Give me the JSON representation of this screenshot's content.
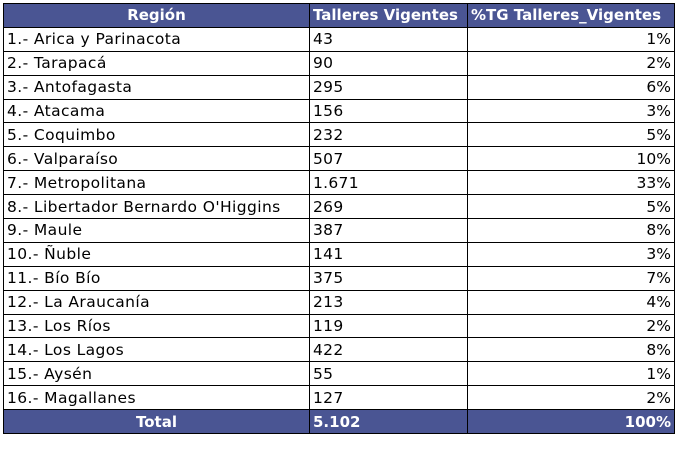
{
  "table": {
    "headers": {
      "region": "Región",
      "talleres": "Talleres Vigentes",
      "pct": "%TG Talleres_Vigentes"
    },
    "rows": [
      {
        "region": "1.- Arica y Parinacota",
        "talleres": " 43",
        "pct": "1%"
      },
      {
        "region": "2.- Tarapacá",
        "talleres": " 90",
        "pct": "2%"
      },
      {
        "region": "3.- Antofagasta",
        "talleres": "295",
        "pct": "6%"
      },
      {
        "region": "4.- Atacama",
        "talleres": "156",
        "pct": "3%"
      },
      {
        "region": "5.- Coquimbo",
        "talleres": "232",
        "pct": "5%"
      },
      {
        "region": "6.- Valparaíso",
        "talleres": "507",
        "pct": "10%"
      },
      {
        "region": "7.- Metropolitana",
        "talleres": "1.671",
        "pct": "33%"
      },
      {
        "region": "8.- Libertador Bernardo O'Higgins",
        "talleres": "269",
        "pct": "5%"
      },
      {
        "region": "9.- Maule",
        "talleres": "387",
        "pct": "8%"
      },
      {
        "region": "10.- Ñuble",
        "talleres": "141",
        "pct": "3%"
      },
      {
        "region": "11.- Bío Bío",
        "talleres": "375",
        "pct": "7%"
      },
      {
        "region": "12.- La Araucanía",
        "talleres": "213",
        "pct": "4%"
      },
      {
        "region": "13.- Los Ríos",
        "talleres": "119",
        "pct": "2%"
      },
      {
        "region": "14.- Los Lagos",
        "talleres": "422",
        "pct": "8%"
      },
      {
        "region": "15.- Aysén",
        "talleres": " 55",
        "pct": "1%"
      },
      {
        "region": "16.- Magallanes",
        "talleres": "127",
        "pct": "2%"
      }
    ],
    "total": {
      "label": "Total",
      "talleres": "5.102",
      "pct": "100%"
    },
    "colors": {
      "header_bg": "#4a5593",
      "header_text": "#ffffff",
      "border": "#000000"
    }
  }
}
